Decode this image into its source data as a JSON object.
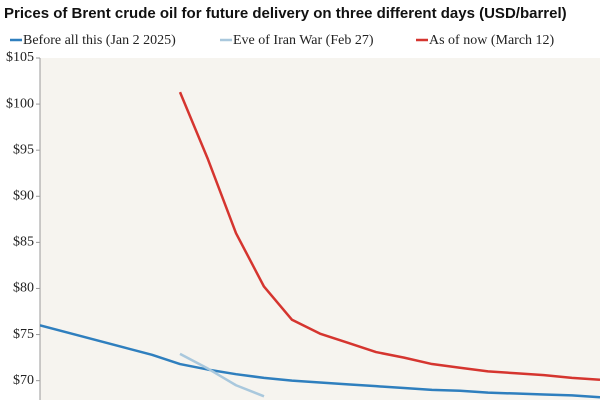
{
  "chart_data": {
    "type": "line",
    "title": "Prices of Brent crude oil for future delivery on three different days (USD/barrel)",
    "categories": [
      null,
      null,
      null,
      null,
      null,
      null,
      null,
      null,
      null,
      null,
      null,
      null,
      null,
      null,
      null,
      null,
      null,
      null,
      null,
      null,
      null
    ],
    "series": [
      {
        "name": "Before all this (Jan 2 2025)",
        "color": "#2f7fbe",
        "values": [
          76,
          75.2,
          74.4,
          73.6,
          72.8,
          71.8,
          71.2,
          70.7,
          70.3,
          70.0,
          69.8,
          69.6,
          69.4,
          69.2,
          69.0,
          68.9,
          68.7,
          68.6,
          68.5,
          68.4,
          68.2
        ]
      },
      {
        "name": "Eve of Iran War (Feb 27)",
        "color": "#a9c8dd",
        "values": [
          null,
          null,
          null,
          null,
          null,
          72.9,
          71.3,
          69.5,
          68.3,
          null,
          null,
          null,
          null,
          null,
          null,
          null,
          null,
          null,
          null,
          null,
          null
        ]
      },
      {
        "name": "As of now (March 12)",
        "color": "#d5352f",
        "values": [
          null,
          null,
          null,
          null,
          null,
          101.3,
          94,
          86,
          80.2,
          76.6,
          75.1,
          74.1,
          73.1,
          72.5,
          71.8,
          71.4,
          71.0,
          70.8,
          70.6,
          70.3,
          70.1
        ]
      }
    ],
    "ylim": [
      67.9,
      105
    ],
    "yticks": [
      {
        "value": 70,
        "label": "$70"
      },
      {
        "value": 75,
        "label": "$75"
      },
      {
        "value": 80,
        "label": "$80"
      },
      {
        "value": 85,
        "label": "$85"
      },
      {
        "value": 90,
        "label": "$90"
      },
      {
        "value": 95,
        "label": "$95"
      },
      {
        "value": 100,
        "label": "$100"
      },
      {
        "value": 105,
        "label": "$105"
      }
    ]
  }
}
